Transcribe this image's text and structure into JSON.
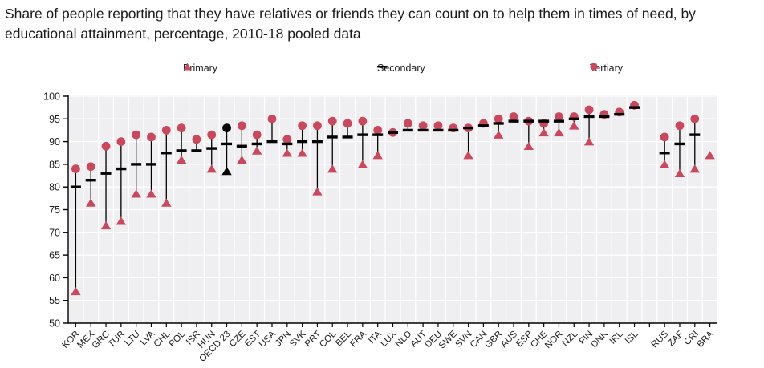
{
  "title": "Share of people reporting that they have relatives or friends they can count on to help them in times of need, by educational attainment, percentage, 2010-18 pooled data",
  "legend": [
    {
      "label": "Primary",
      "marker": "triangle",
      "color": "#c8495e"
    },
    {
      "label": "Secondary",
      "marker": "dash",
      "color": "#000000"
    },
    {
      "label": "Tertiary",
      "marker": "circle",
      "color": "#c8495e"
    }
  ],
  "colors": {
    "marker_red": "#c8495e",
    "marker_black": "#000000",
    "plot_background": "#efeef0",
    "gridline": "#ffffff",
    "axis": "#000000",
    "text": "#1b1b1b"
  },
  "chart_data": {
    "type": "scatter",
    "subtype": "dot-range-by-category",
    "title": "Share of people reporting that they have relatives or friends they can count on to help them in times of need, by educational attainment, percentage, 2010-18 pooled data",
    "ylabel": "",
    "xlabel": "",
    "ylim": [
      50,
      100
    ],
    "ytick_step": 5,
    "grid": true,
    "legend_position": "top",
    "highlight_category": "OECD 23",
    "gap_after_index": 37,
    "categories": [
      "KOR",
      "MEX",
      "GRC",
      "TUR",
      "LTU",
      "LVA",
      "CHL",
      "POL",
      "ISR",
      "HUN",
      "OECD 23",
      "CZE",
      "EST",
      "USA",
      "JPN",
      "SVK",
      "PRT",
      "COL",
      "BEL",
      "FRA",
      "ITA",
      "LUX",
      "NLD",
      "AUT",
      "DEU",
      "SWE",
      "SVN",
      "CAN",
      "GBR",
      "AUS",
      "ESP",
      "CHE",
      "NOR",
      "NZL",
      "FIN",
      "DNK",
      "IRL",
      "ISL",
      "RUS",
      "ZAF",
      "CRI",
      "BRA"
    ],
    "series": [
      {
        "name": "Primary",
        "marker": "triangle",
        "values": [
          57,
          76.5,
          71.5,
          72.5,
          78.5,
          78.5,
          76.5,
          86,
          null,
          84,
          83.5,
          86,
          88,
          null,
          87.5,
          87.5,
          79,
          84,
          null,
          85,
          87,
          null,
          null,
          null,
          null,
          null,
          87,
          null,
          91.5,
          null,
          89,
          92,
          92,
          93.5,
          90,
          null,
          null,
          null,
          85,
          83,
          84,
          87
        ]
      },
      {
        "name": "Secondary",
        "marker": "dash",
        "values": [
          80,
          81.5,
          83,
          84,
          85,
          85,
          87.5,
          88,
          88,
          88.5,
          89.5,
          89,
          89.5,
          90,
          89.5,
          90,
          90,
          91,
          91,
          91.5,
          91.5,
          92,
          92.5,
          92.5,
          92.5,
          92.5,
          93,
          93.5,
          94,
          94.5,
          94.5,
          94.5,
          94.5,
          95,
          95.5,
          95.5,
          96,
          97.5,
          87.5,
          89.5,
          91.5,
          null
        ]
      },
      {
        "name": "Tertiary",
        "marker": "circle",
        "values": [
          84,
          84.5,
          89,
          90,
          91.5,
          91,
          92.5,
          93,
          90.5,
          91.5,
          93,
          93.5,
          91.5,
          95,
          90.5,
          93.5,
          93.5,
          94.5,
          94,
          94.5,
          92.5,
          92,
          94,
          93.5,
          93.5,
          93,
          93,
          94,
          95,
          95.5,
          94.5,
          94,
          95.5,
          95.5,
          97,
          96,
          96.5,
          98,
          91,
          93.5,
          95,
          null
        ]
      }
    ],
    "yticks": [
      50,
      55,
      60,
      65,
      70,
      75,
      80,
      85,
      90,
      95,
      100
    ]
  }
}
